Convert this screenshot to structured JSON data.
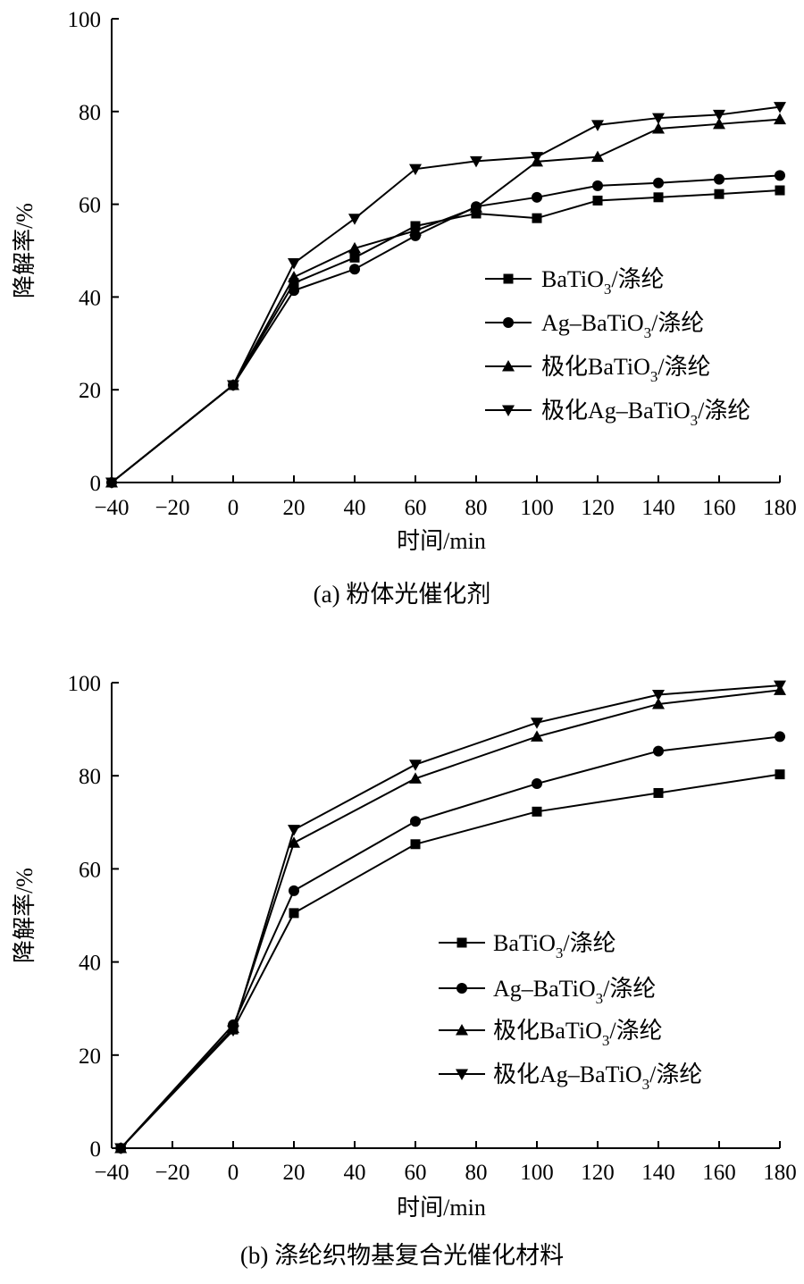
{
  "chart_data": [
    {
      "type": "line",
      "caption": "(a) 粉体光催化剂",
      "xlabel": "时间/min",
      "ylabel": "降解率/%",
      "xlim": [
        -40,
        180
      ],
      "ylim": [
        0,
        100
      ],
      "xticks": [
        -40,
        -20,
        0,
        20,
        40,
        60,
        80,
        100,
        120,
        140,
        160,
        180
      ],
      "xtick_labels": [
        "−40",
        "−20",
        "0",
        "20",
        "40",
        "60",
        "80",
        "100",
        "120",
        "140",
        "160",
        "180"
      ],
      "yticks": [
        0,
        20,
        40,
        60,
        80,
        100
      ],
      "ytick_labels": [
        "0",
        "20",
        "40",
        "60",
        "80",
        "100"
      ],
      "legend_position": "center-right",
      "series": [
        {
          "name": "BaTiO3/涤纶",
          "legend": {
            "prefix": "BaTiO",
            "sub": "3",
            "suffix": "/涤纶"
          },
          "marker": "square",
          "x": [
            -40,
            0,
            20,
            40,
            60,
            80,
            100,
            120,
            140,
            160,
            180
          ],
          "y": [
            0,
            21,
            43,
            48.5,
            55.3,
            58,
            57,
            60.8,
            61.5,
            62.2,
            63
          ]
        },
        {
          "name": "Ag–BaTiO3/涤纶",
          "legend": {
            "prefix": "Ag–BaTiO",
            "sub": "3",
            "suffix": "/涤纶"
          },
          "marker": "circle",
          "x": [
            -40,
            0,
            20,
            40,
            60,
            80,
            100,
            120,
            140,
            160,
            180
          ],
          "y": [
            0,
            21,
            41.4,
            46,
            53.2,
            59.5,
            61.5,
            64,
            64.6,
            65.4,
            66.2
          ]
        },
        {
          "name": "极化BaTiO3/涤纶",
          "legend": {
            "prefix": "极化BaTiO",
            "sub": "3",
            "suffix": "/涤纶"
          },
          "marker": "triangle-up",
          "x": [
            -40,
            0,
            20,
            40,
            60,
            80,
            100,
            120,
            140,
            160,
            180
          ],
          "y": [
            0,
            21,
            44.3,
            50.5,
            54.3,
            59.3,
            69.2,
            70.2,
            76.3,
            77.3,
            78.3
          ]
        },
        {
          "name": "极化Ag–BaTiO3/涤纶",
          "legend": {
            "prefix": "极化Ag–BaTiO",
            "sub": "3",
            "suffix": "/涤纶"
          },
          "marker": "triangle-down",
          "x": [
            -40,
            0,
            20,
            40,
            60,
            80,
            100,
            120,
            140,
            160,
            180
          ],
          "y": [
            0,
            21,
            47.3,
            56.9,
            67.6,
            69.3,
            70.2,
            77.1,
            78.6,
            79.3,
            81
          ]
        }
      ]
    },
    {
      "type": "line",
      "caption": "(b) 涤纶织物基复合光催化材料",
      "xlabel": "时间/min",
      "ylabel": "降解率/%",
      "xlim": [
        -40,
        180
      ],
      "ylim": [
        0,
        100
      ],
      "xticks": [
        -40,
        -20,
        0,
        20,
        40,
        60,
        80,
        100,
        120,
        140,
        160,
        180
      ],
      "xtick_labels": [
        "−40",
        "−20",
        "0",
        "20",
        "40",
        "60",
        "80",
        "100",
        "120",
        "140",
        "160",
        "180"
      ],
      "yticks": [
        0,
        20,
        40,
        60,
        80,
        100
      ],
      "ytick_labels": [
        "0",
        "20",
        "40",
        "60",
        "80",
        "100"
      ],
      "legend_position": "center-right",
      "series": [
        {
          "name": "BaTiO3/涤纶",
          "legend": {
            "prefix": "BaTiO",
            "sub": "3",
            "suffix": "/涤纶"
          },
          "marker": "square",
          "x": [
            -37,
            0,
            20,
            60,
            100,
            140,
            180
          ],
          "y": [
            0,
            25.5,
            50.5,
            65.3,
            72.3,
            76.3,
            80.3
          ]
        },
        {
          "name": "Ag–BaTiO3/涤纶",
          "legend": {
            "prefix": "Ag–BaTiO",
            "sub": "3",
            "suffix": "/涤纶"
          },
          "marker": "circle",
          "x": [
            -37,
            0,
            20,
            60,
            100,
            140,
            180
          ],
          "y": [
            0,
            26.5,
            55.3,
            70.2,
            78.3,
            85.3,
            88.4
          ]
        },
        {
          "name": "极化BaTiO3/涤纶",
          "legend": {
            "prefix": "极化BaTiO",
            "sub": "3",
            "suffix": "/涤纶"
          },
          "marker": "triangle-up",
          "x": [
            -37,
            0,
            20,
            60,
            100,
            140,
            180
          ],
          "y": [
            0,
            25.8,
            65.6,
            79.4,
            88.4,
            95.4,
            98.4
          ]
        },
        {
          "name": "极化Ag–BaTiO3/涤纶",
          "legend": {
            "prefix": "极化Ag–BaTiO",
            "sub": "3",
            "suffix": "/涤纶"
          },
          "marker": "triangle-down",
          "x": [
            -37,
            0,
            20,
            60,
            100,
            140,
            180
          ],
          "y": [
            0,
            25.3,
            68.4,
            82.4,
            91.4,
            97.4,
            99.4
          ]
        }
      ]
    }
  ]
}
